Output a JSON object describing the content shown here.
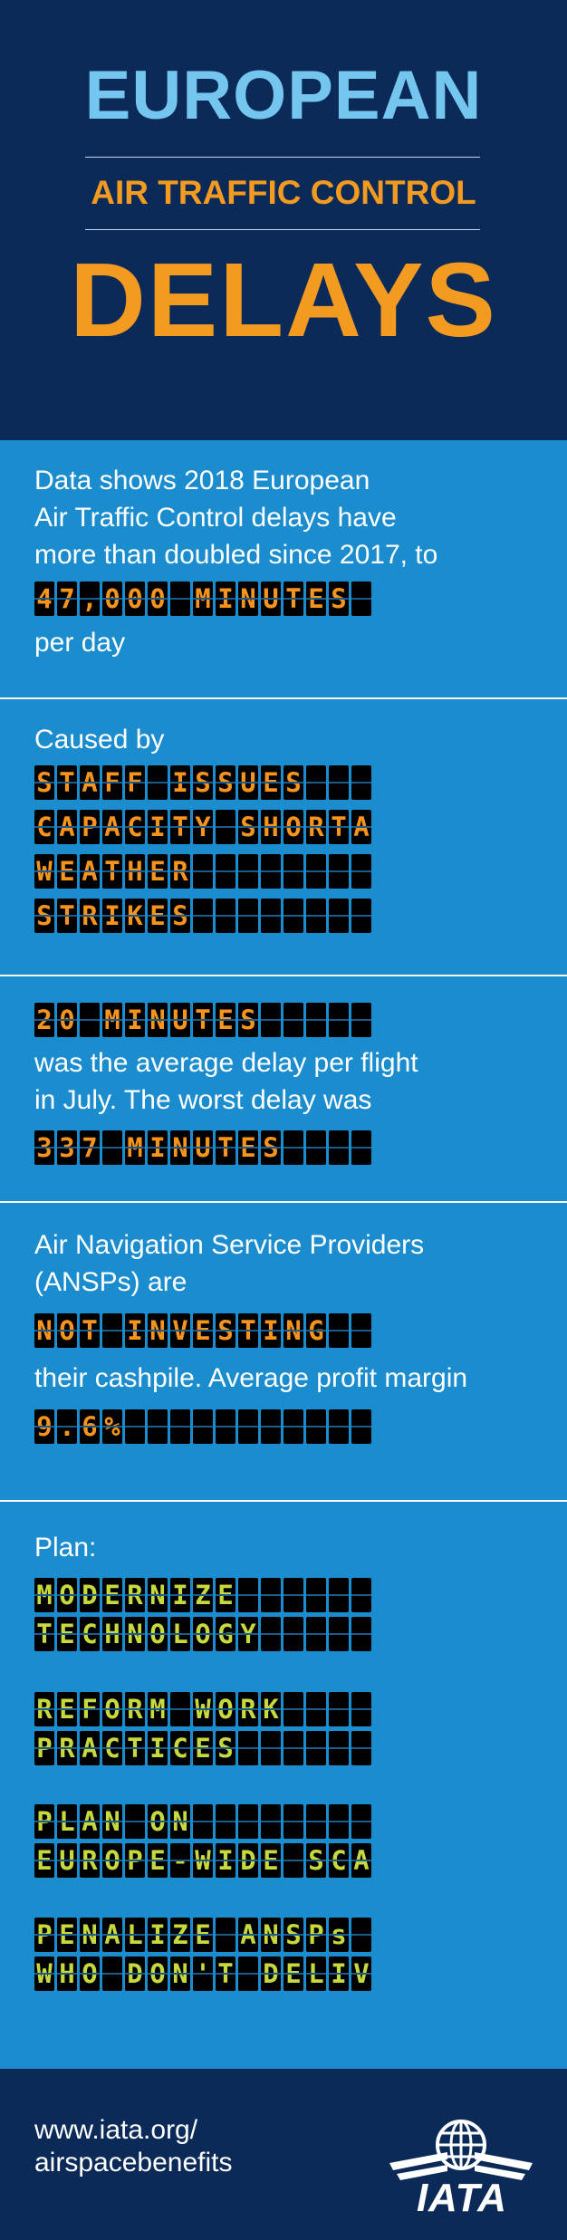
{
  "header": {
    "line1": "EUROPEAN",
    "line2": "AIR TRAFFIC CONTROL",
    "line3": "DELAYS"
  },
  "board_cells": 15,
  "colors": {
    "orange": "#f7941d",
    "green": "#c7d93d",
    "panel": "#1b8cce",
    "navy": "#0b2a57",
    "light_blue": "#74c6ef"
  },
  "section1": {
    "text_lines": [
      "Data shows 2018 European",
      "Air Traffic Control delays have",
      "more than doubled since 2017, to"
    ],
    "board": "47,000 MINUTES",
    "after": "per day"
  },
  "section2": {
    "intro": "Caused by",
    "boards": [
      "STAFF ISSUES",
      "CAPACITY SHORTAGE",
      "WEATHER",
      "STRIKES"
    ]
  },
  "section3": {
    "board1": "20 MINUTES",
    "text_lines": [
      "was the average delay per flight",
      "in July. The worst delay was"
    ],
    "board2": "337 MINUTES"
  },
  "section4": {
    "text_lines": [
      "Air Navigation Service Providers",
      "(ANSPs) are"
    ],
    "board1": "NOT INVESTING",
    "text2": "their cashpile. Average profit margin",
    "board2": "9.6%"
  },
  "section5": {
    "intro": "Plan:",
    "boards": [
      "MODERNIZE",
      "TECHNOLOGY",
      "REFORM WORK",
      "PRACTICES",
      "PLAN ON",
      "EUROPE-WIDE SCALE",
      "PENALIZE ANSPs",
      "WHO DON'T DELIVER"
    ]
  },
  "footer": {
    "url_line1": "www.iata.org/",
    "url_line2": "airspacebenefits",
    "logo_text": "IATA",
    "logo_icon": "globe-wings-icon"
  }
}
